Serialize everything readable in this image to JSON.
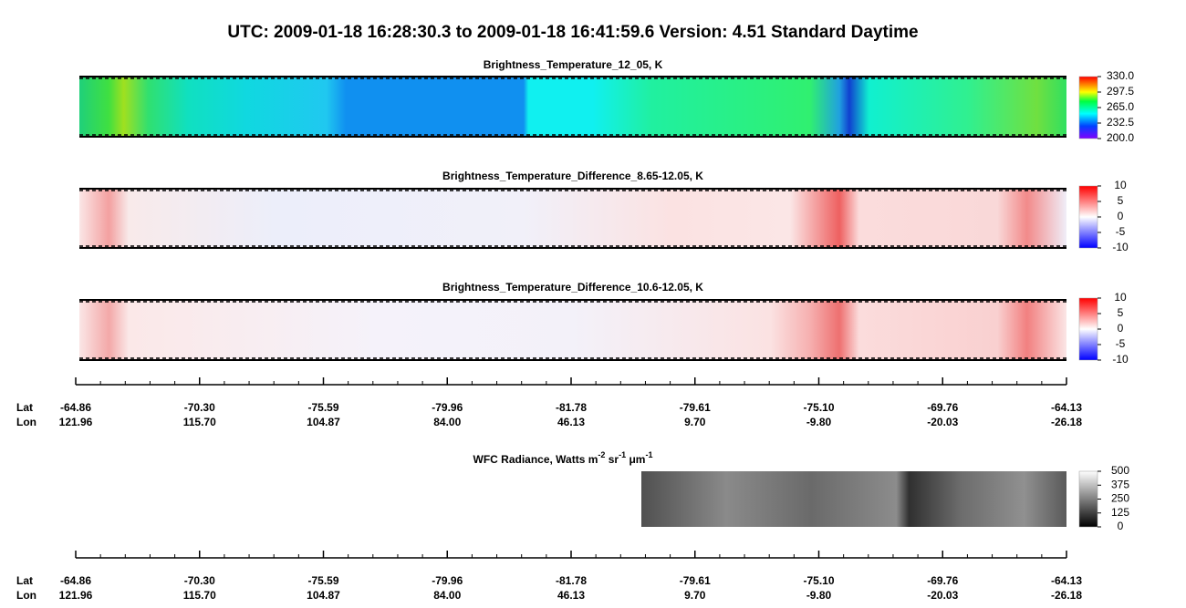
{
  "header": {
    "title": "UTC:  2009-01-18   16:28:30.3  to  2009-01-18   16:41:59.6    Version: 4.51  Standard Daytime"
  },
  "panels": [
    {
      "title": "Brightness_Temperature_12_05, K",
      "colormap": "rainbow",
      "colorbar_ticks": [
        {
          "value": 330,
          "label": "330.0"
        },
        {
          "value": 297.5,
          "label": "297.5"
        },
        {
          "value": 265,
          "label": "265.0"
        },
        {
          "value": 232.5,
          "label": "232.5"
        },
        {
          "value": 200,
          "label": "200.0"
        }
      ]
    },
    {
      "title": "Brightness_Temperature_Difference_8.65-12.05, K",
      "colormap": "diverging",
      "colorbar_ticks": [
        10,
        5,
        0,
        -5,
        -10
      ]
    },
    {
      "title": "Brightness_Temperature_Difference_10.6-12.05, K",
      "colormap": "diverging",
      "colorbar_ticks": [
        10,
        5,
        0,
        -5,
        -10
      ]
    },
    {
      "title_parts": [
        "WFC Radiance, Watts m",
        "-2",
        " sr",
        "-1",
        " μm",
        "-1"
      ],
      "colormap": "gray",
      "colorbar_ticks": [
        500,
        375,
        250,
        125,
        0
      ]
    }
  ],
  "axes": [
    {
      "row_labels": [
        "Lat",
        "Lon"
      ],
      "ticks": [
        [
          "-64.86",
          "121.96"
        ],
        [
          "-70.30",
          "115.70"
        ],
        [
          "-75.59",
          "104.87"
        ],
        [
          "-79.96",
          "84.00"
        ],
        [
          "-81.78",
          "46.13"
        ],
        [
          "-79.61",
          "9.70"
        ],
        [
          "-75.10",
          "-9.80"
        ],
        [
          "-69.76",
          "-20.03"
        ],
        [
          "-64.13",
          "-26.18"
        ]
      ]
    },
    {
      "row_labels": [
        "Lat",
        "Lon"
      ],
      "ticks": [
        [
          "-64.86",
          "121.96"
        ],
        [
          "-70.30",
          "115.70"
        ],
        [
          "-75.59",
          "104.87"
        ],
        [
          "-79.96",
          "84.00"
        ],
        [
          "-81.78",
          "46.13"
        ],
        [
          "-79.61",
          "9.70"
        ],
        [
          "-75.10",
          "-9.80"
        ],
        [
          "-69.76",
          "-20.03"
        ],
        [
          "-64.13",
          "-26.18"
        ]
      ]
    }
  ]
}
